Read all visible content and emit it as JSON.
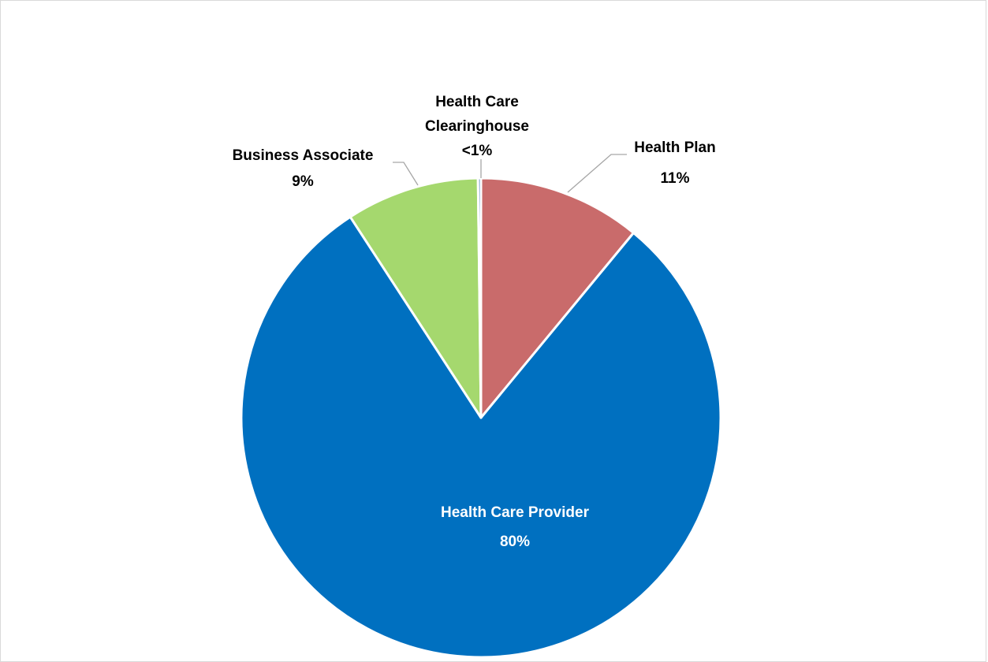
{
  "chart_data": {
    "type": "pie",
    "start": "top",
    "direction": "clockwise",
    "slices": [
      {
        "category": "Health Plan",
        "value": 11,
        "value_label": "11%",
        "color": "#c96b6b"
      },
      {
        "category": "Health Care Provider",
        "value": 80,
        "value_label": "80%",
        "color": "#0070c0"
      },
      {
        "category": "Business Associate",
        "value": 9,
        "value_label": "9%",
        "color": "#a5d86e"
      },
      {
        "category": "Health Care Clearinghouse",
        "value": 0.2,
        "value_label": "<1%",
        "color": "#4f81bd"
      }
    ],
    "title": "",
    "legend": "none"
  },
  "labels": {
    "health_plan_name": "Health Plan",
    "health_plan_value": "11%",
    "provider_name": "Health Care Provider",
    "provider_value": "80%",
    "business_associate_name": "Business Associate",
    "business_associate_value": "9%",
    "clearinghouse_line1": "Health Care",
    "clearinghouse_line2": "Clearinghouse",
    "clearinghouse_value": "<1%"
  }
}
